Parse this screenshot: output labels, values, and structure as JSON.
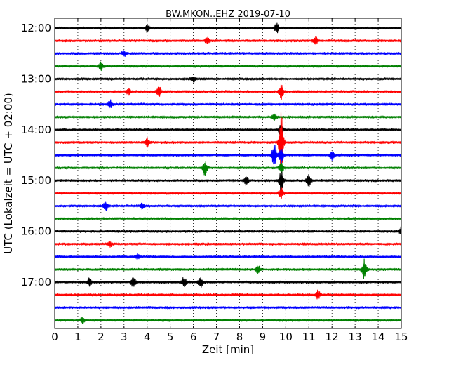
{
  "chart_data": {
    "type": "line",
    "title": "BW.MKON..EHZ 2019-07-10",
    "xlabel": "Zeit  [min]",
    "ylabel": "UTC (Lokalzeit = UTC + 02:00)",
    "xlim": [
      0,
      15
    ],
    "x_ticks": [
      "0",
      "1",
      "2",
      "3",
      "4",
      "5",
      "6",
      "7",
      "8",
      "9",
      "10",
      "11",
      "12",
      "13",
      "14",
      "15"
    ],
    "y_ticks": [
      "12:00",
      "13:00",
      "14:00",
      "15:00",
      "16:00",
      "17:00"
    ],
    "grid": "vertical dotted",
    "trace_interval_minutes": 15,
    "trace_colors": [
      "#000000",
      "#ff0000",
      "#0000ff",
      "#008000"
    ],
    "traces": [
      {
        "start": "12:00",
        "color": "#000000",
        "events": [
          {
            "x": 4.0,
            "amp": 0.3
          },
          {
            "x": 9.6,
            "amp": 0.35
          }
        ]
      },
      {
        "start": "12:15",
        "color": "#ff0000",
        "events": [
          {
            "x": 6.6,
            "amp": 0.3
          },
          {
            "x": 11.3,
            "amp": 0.3
          }
        ]
      },
      {
        "start": "12:30",
        "color": "#0000ff",
        "events": [
          {
            "x": 3.0,
            "amp": 0.2
          }
        ]
      },
      {
        "start": "12:45",
        "color": "#008000",
        "events": [
          {
            "x": 2.0,
            "amp": 0.3
          }
        ]
      },
      {
        "start": "13:00",
        "color": "#000000",
        "events": [
          {
            "x": 6.0,
            "amp": 0.2
          }
        ]
      },
      {
        "start": "13:15",
        "color": "#ff0000",
        "events": [
          {
            "x": 3.2,
            "amp": 0.25
          },
          {
            "x": 4.5,
            "amp": 0.4
          },
          {
            "x": 9.8,
            "amp": 0.55
          }
        ]
      },
      {
        "start": "13:30",
        "color": "#0000ff",
        "events": [
          {
            "x": 2.4,
            "amp": 0.3
          }
        ]
      },
      {
        "start": "13:45",
        "color": "#008000",
        "events": [
          {
            "x": 9.5,
            "amp": 0.2
          }
        ]
      },
      {
        "start": "14:00",
        "color": "#000000",
        "events": [
          {
            "x": 9.8,
            "amp": 0.5
          }
        ]
      },
      {
        "start": "14:15",
        "color": "#ff0000",
        "events": [
          {
            "x": 4.0,
            "amp": 0.3
          },
          {
            "x": 9.8,
            "amp": 2.3
          }
        ]
      },
      {
        "start": "14:30",
        "color": "#0000ff",
        "events": [
          {
            "x": 9.5,
            "amp": 0.9
          },
          {
            "x": 9.8,
            "amp": 0.6
          },
          {
            "x": 12.0,
            "amp": 0.4
          }
        ]
      },
      {
        "start": "14:45",
        "color": "#008000",
        "events": [
          {
            "x": 6.5,
            "amp": 0.6
          },
          {
            "x": 9.8,
            "amp": 0.4
          }
        ]
      },
      {
        "start": "15:00",
        "color": "#000000",
        "events": [
          {
            "x": 8.3,
            "amp": 0.4
          },
          {
            "x": 9.8,
            "amp": 0.8
          },
          {
            "x": 11.0,
            "amp": 0.5
          }
        ]
      },
      {
        "start": "15:15",
        "color": "#ff0000",
        "events": [
          {
            "x": 9.8,
            "amp": 0.4
          }
        ]
      },
      {
        "start": "15:30",
        "color": "#0000ff",
        "events": [
          {
            "x": 2.2,
            "amp": 0.4
          },
          {
            "x": 3.8,
            "amp": 0.2
          }
        ]
      },
      {
        "start": "15:45",
        "color": "#008000",
        "events": []
      },
      {
        "start": "16:00",
        "color": "#000000",
        "events": [
          {
            "x": 15.0,
            "amp": 0.3
          }
        ]
      },
      {
        "start": "16:15",
        "color": "#ff0000",
        "events": [
          {
            "x": 2.4,
            "amp": 0.2
          }
        ]
      },
      {
        "start": "16:30",
        "color": "#0000ff",
        "events": [
          {
            "x": 3.6,
            "amp": 0.2
          }
        ]
      },
      {
        "start": "16:45",
        "color": "#008000",
        "events": [
          {
            "x": 8.8,
            "amp": 0.3
          },
          {
            "x": 13.4,
            "amp": 0.8
          }
        ]
      },
      {
        "start": "17:00",
        "color": "#000000",
        "events": [
          {
            "x": 1.5,
            "amp": 0.3
          },
          {
            "x": 3.4,
            "amp": 0.4
          },
          {
            "x": 5.6,
            "amp": 0.4
          },
          {
            "x": 6.3,
            "amp": 0.4
          }
        ]
      },
      {
        "start": "17:15",
        "color": "#ff0000",
        "events": [
          {
            "x": 11.4,
            "amp": 0.35
          }
        ]
      },
      {
        "start": "17:30",
        "color": "#0000ff",
        "events": []
      },
      {
        "start": "17:45",
        "color": "#008000",
        "events": [
          {
            "x": 1.2,
            "amp": 0.2
          }
        ]
      }
    ]
  }
}
